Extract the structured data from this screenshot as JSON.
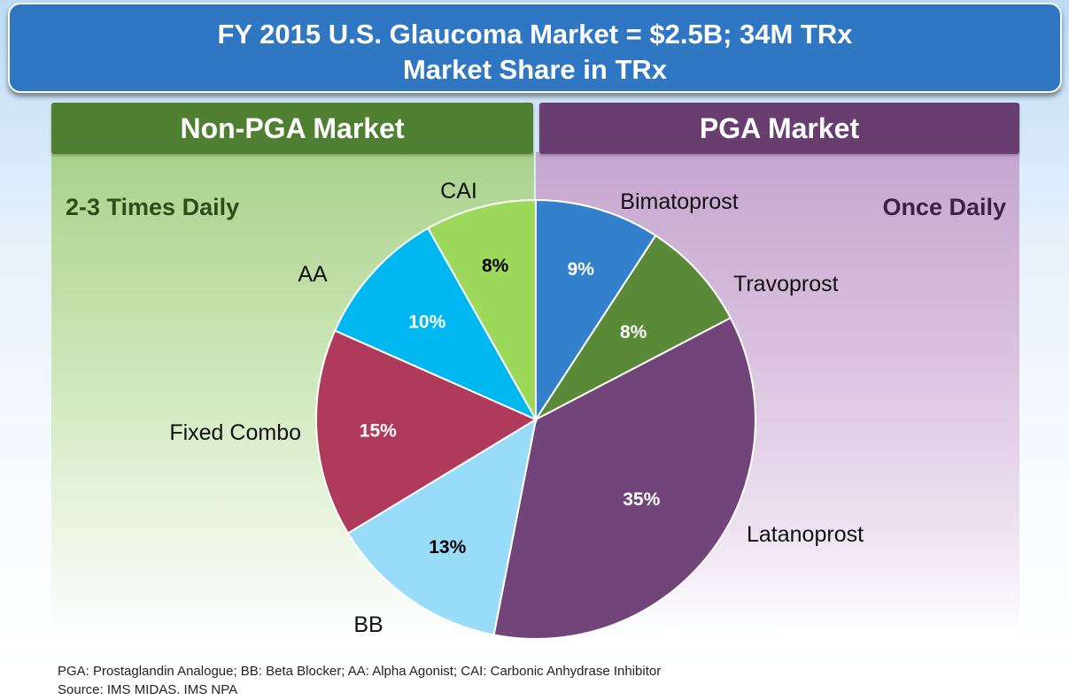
{
  "title": {
    "line1": "FY 2015 U.S. Glaucoma Market = $2.5B; 34M TRx",
    "line2": "Market Share in TRx"
  },
  "panels": {
    "left": {
      "header": "Non-PGA Market",
      "frequency": "2-3 Times Daily",
      "color": "#4f7f30"
    },
    "right": {
      "header": "PGA Market",
      "frequency": "Once Daily",
      "color": "#683d70"
    }
  },
  "chart_data": {
    "type": "pie",
    "title": "Market Share in TRx",
    "slices": [
      {
        "label": "Bimatoprost",
        "value": 9,
        "value_label": "9%",
        "color": "#3380cd"
      },
      {
        "label": "Travoprost",
        "value": 8,
        "value_label": "8%",
        "color": "#5a8a38"
      },
      {
        "label": "Latanoprost",
        "value": 35,
        "value_label": "35%",
        "color": "#72457a"
      },
      {
        "label": "BB",
        "value": 13,
        "value_label": "13%",
        "color": "#98dcfa"
      },
      {
        "label": "Fixed Combo",
        "value": 15,
        "value_label": "15%",
        "color": "#b03a5c"
      },
      {
        "label": "AA",
        "value": 10,
        "value_label": "10%",
        "color": "#00b8f0"
      },
      {
        "label": "CAI",
        "value": 8,
        "value_label": "8%",
        "color": "#9cd95a"
      }
    ],
    "start_angle": "12 o'clock",
    "direction": "clockwise"
  },
  "footnotes": {
    "abbreviations": "PGA: Prostaglandin Analogue; BB: Beta Blocker; AA: Alpha Agonist; CAI: Carbonic Anhydrase Inhibitor",
    "source": "Source: IMS MIDAS. IMS NPA"
  }
}
